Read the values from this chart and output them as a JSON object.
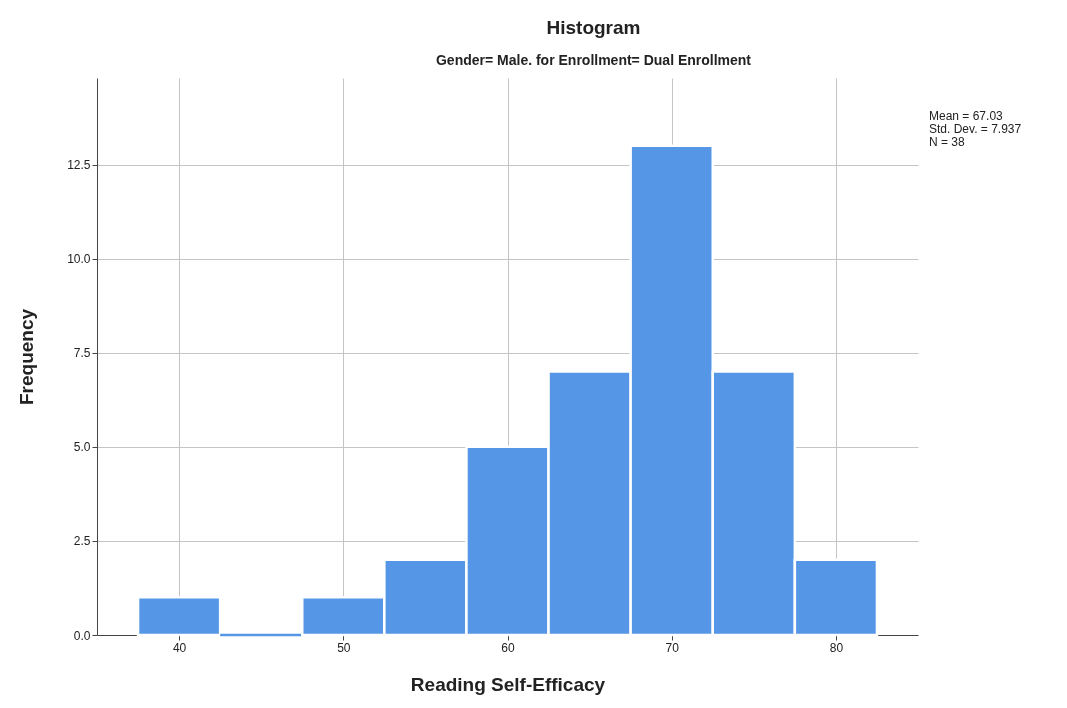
{
  "chart_data": {
    "type": "histogram",
    "title": "Histogram",
    "subtitle": "Gender= Male.  for Enrollment= Dual Enrollment",
    "xlabel": "Reading Self-Efficacy",
    "ylabel": "Frequency",
    "bins": [
      37.5,
      42.5,
      47.5,
      52.5,
      57.5,
      62.5,
      67.5,
      72.5,
      77.5,
      82.5
    ],
    "values": [
      1,
      0,
      1,
      2,
      5,
      7,
      13,
      7,
      2
    ],
    "color": "#5596e6",
    "xlim": [
      35,
      85
    ],
    "xticks": [
      40,
      50,
      60,
      70,
      80
    ],
    "ylim": [
      0,
      14.8
    ],
    "yticks": [
      {
        "value": 0,
        "label": "0.0"
      },
      {
        "value": 2.5,
        "label": "2.5"
      },
      {
        "value": 5,
        "label": "5.0"
      },
      {
        "value": 7.5,
        "label": "7.5"
      },
      {
        "value": 10,
        "label": "10.0"
      },
      {
        "value": 12.5,
        "label": "12.5"
      }
    ],
    "grid": true,
    "annotations": [
      "Mean = 67.03",
      "Std. Dev. = 7.937",
      "N = 38"
    ]
  }
}
